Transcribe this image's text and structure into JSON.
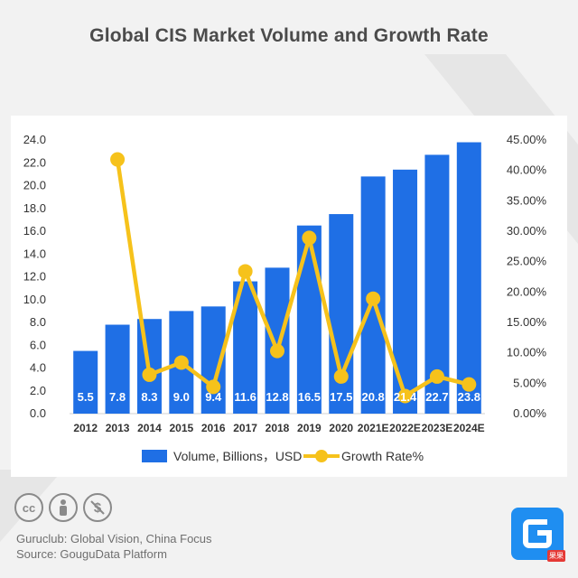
{
  "title": "Global CIS Market Volume and Growth Rate",
  "colors": {
    "bar": "#1f6fe5",
    "line": "#f6c21b",
    "background": "#f2f2f2",
    "panel": "#ffffff",
    "text": "#4b4b4b"
  },
  "chart_data": {
    "type": "bar",
    "title": "Global CIS Market Volume and Growth Rate",
    "categories": [
      "2012",
      "2013",
      "2014",
      "2015",
      "2016",
      "2017",
      "2018",
      "2019",
      "2020",
      "2021E",
      "2022E",
      "2023E",
      "2024E"
    ],
    "series": [
      {
        "name": "Volume, Billions，USD",
        "type": "bar",
        "axis": "left",
        "values": [
          5.5,
          7.8,
          8.3,
          9.0,
          9.4,
          11.6,
          12.8,
          16.5,
          17.5,
          20.8,
          21.4,
          22.7,
          23.8
        ],
        "labels": [
          "5.5",
          "7.8",
          "8.3",
          "9.0",
          "9.4",
          "11.6",
          "12.8",
          "16.5",
          "17.5",
          "20.8",
          "21.4",
          "22.7",
          "23.8"
        ]
      },
      {
        "name": "Growth Rate%",
        "type": "line",
        "axis": "right",
        "values": [
          null,
          41.8,
          6.4,
          8.4,
          4.4,
          23.4,
          10.3,
          28.9,
          6.1,
          18.9,
          2.9,
          6.1,
          4.8
        ]
      }
    ],
    "y_left": {
      "range": [
        0,
        24
      ],
      "ticks": [
        "0.0",
        "2.0",
        "4.0",
        "6.0",
        "8.0",
        "10.0",
        "12.0",
        "14.0",
        "16.0",
        "18.0",
        "20.0",
        "22.0",
        "24.0"
      ]
    },
    "y_right": {
      "range": [
        0,
        45
      ],
      "ticks": [
        "0.00%",
        "5.00%",
        "10.00%",
        "15.00%",
        "20.00%",
        "25.00%",
        "30.00%",
        "35.00%",
        "40.00%",
        "45.00%"
      ]
    },
    "legend_position": "bottom"
  },
  "footer": {
    "cc_icons": [
      "cc",
      "by",
      "nc"
    ],
    "line1": "Guruclub: Global Vision, China Focus",
    "line2": "Source: GouguData Platform",
    "badge": "果果"
  }
}
